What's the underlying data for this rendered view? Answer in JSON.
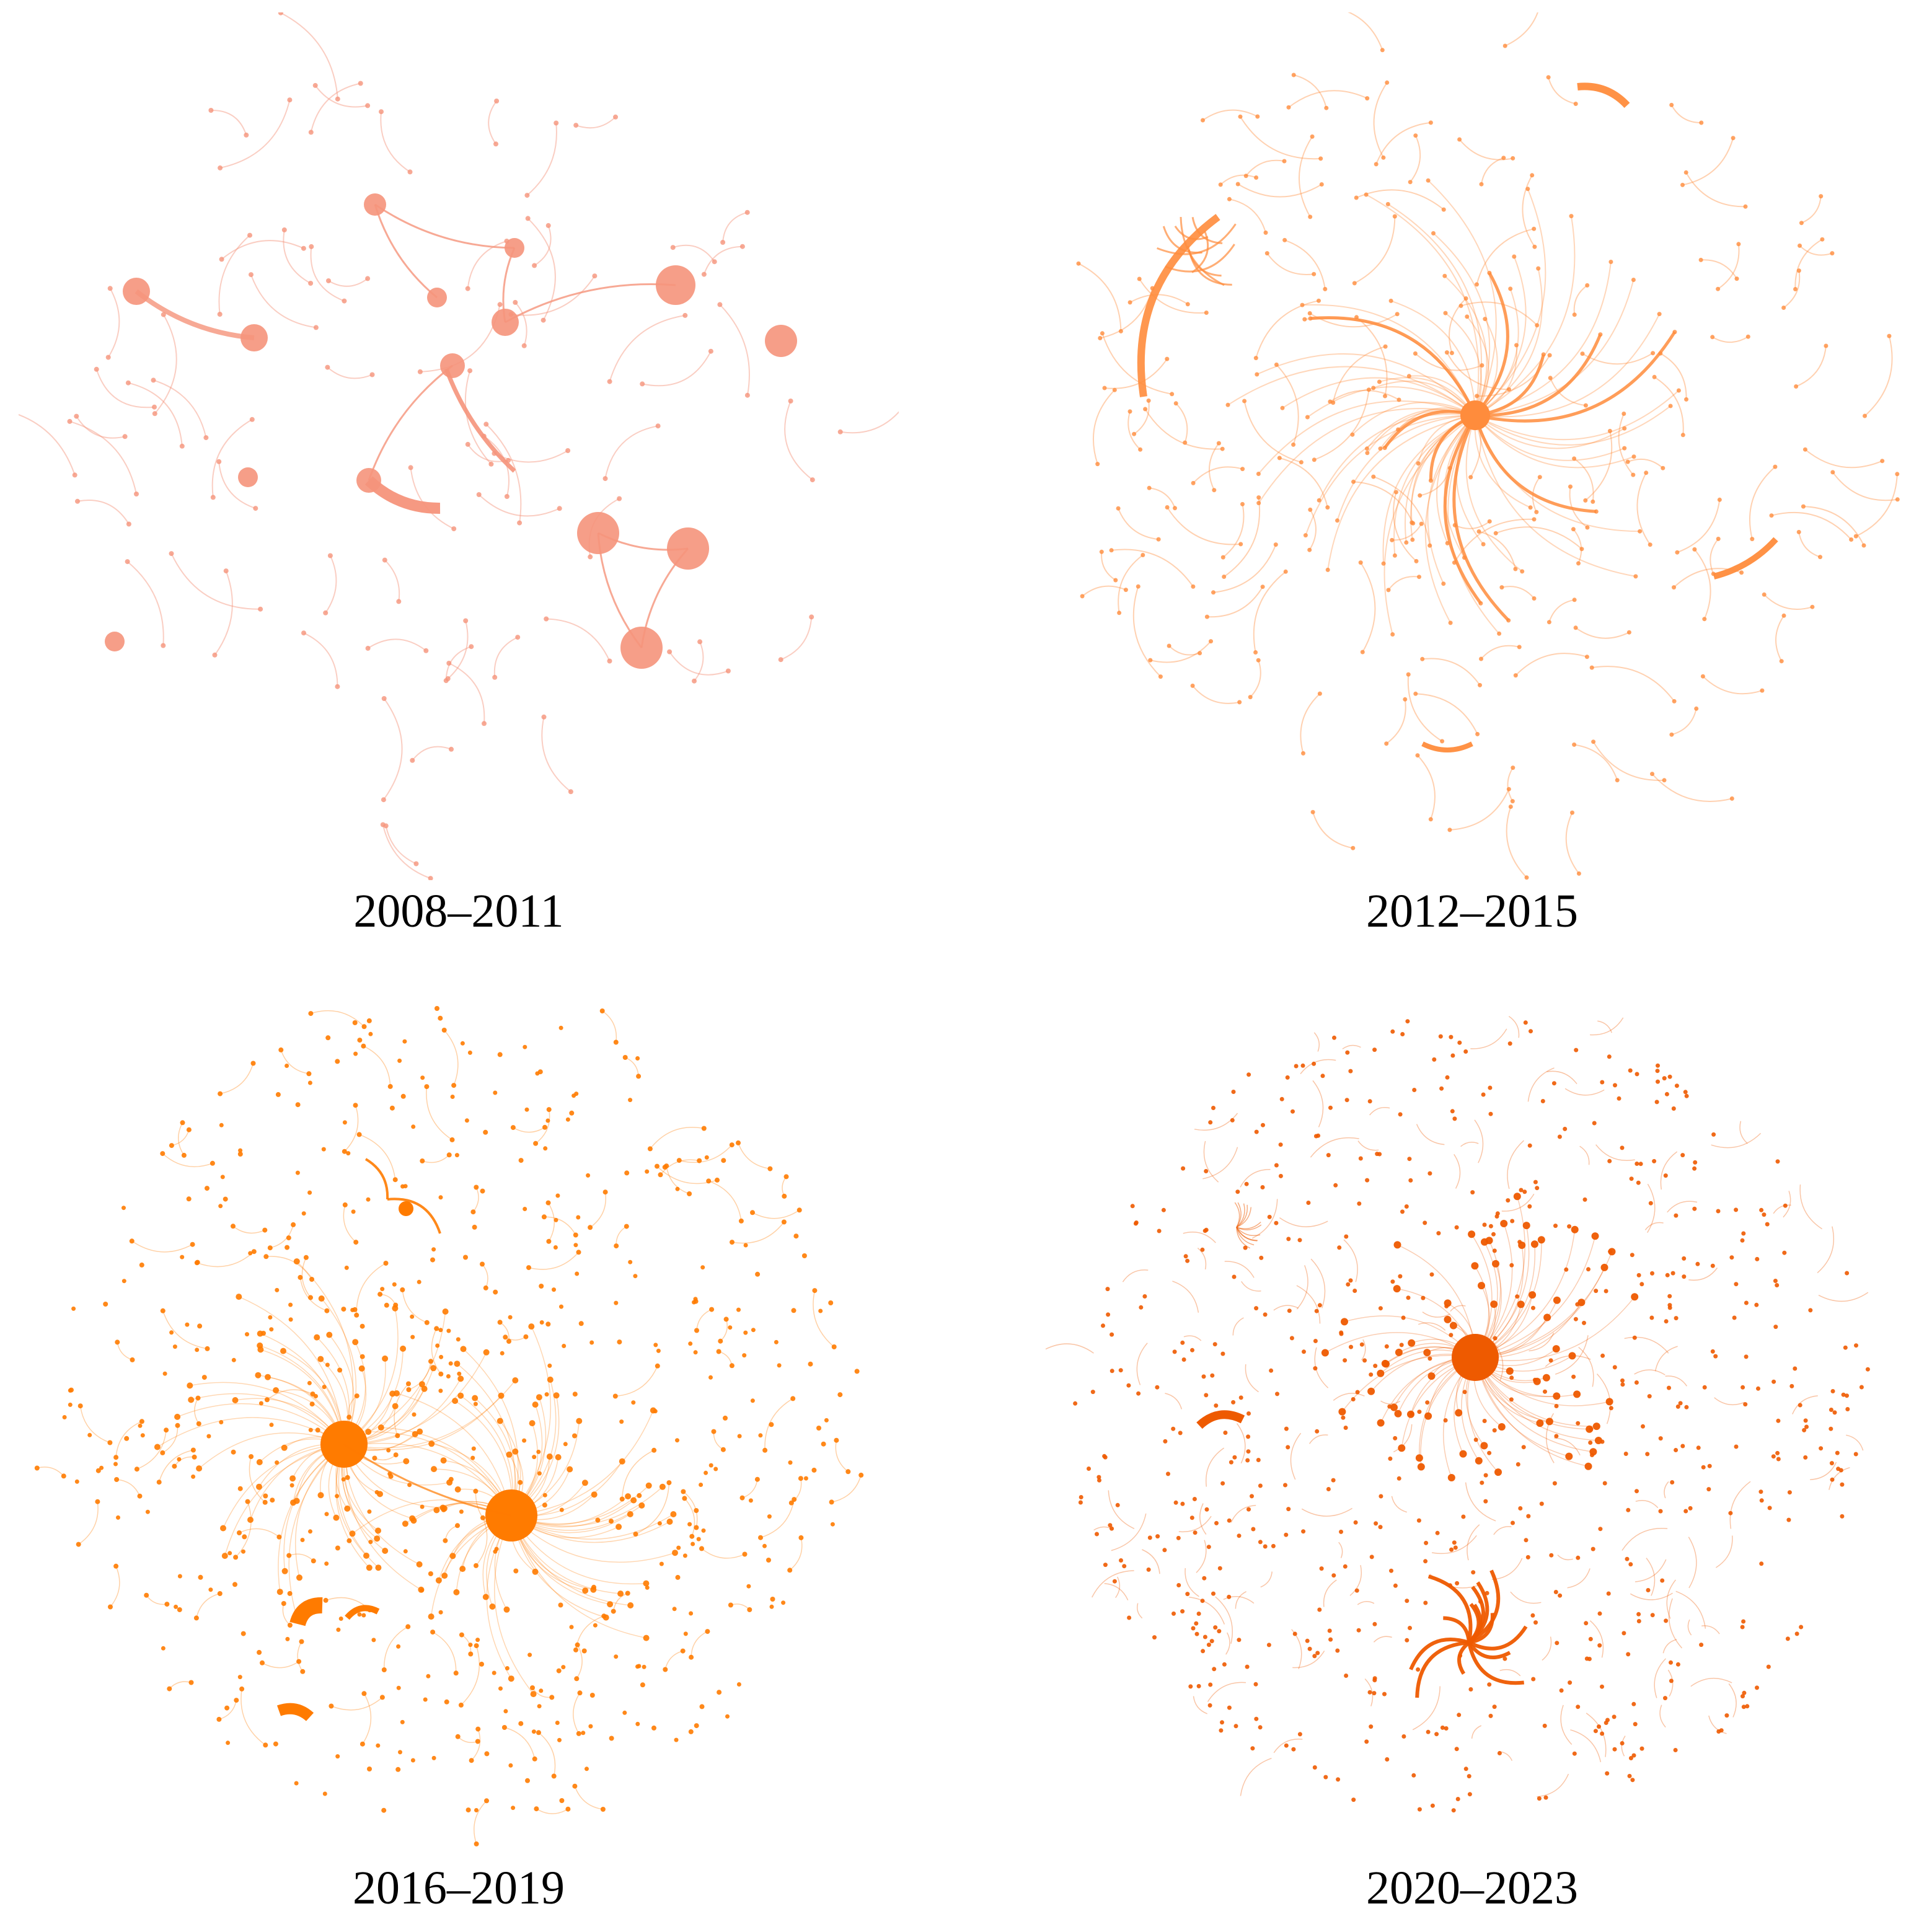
{
  "panels": [
    {
      "caption": "2008–2011",
      "color": "#f5937b",
      "density": "sparse",
      "hubs": 0
    },
    {
      "caption": "2012–2015",
      "color": "#ff8c3c",
      "density": "medium",
      "hubs": 1
    },
    {
      "caption": "2016–2019",
      "color": "#ff7b00",
      "density": "dense",
      "hubs": 2
    },
    {
      "caption": "2020–2023",
      "color": "#ee5a00",
      "density": "very-dense",
      "hubs": 1
    }
  ]
}
